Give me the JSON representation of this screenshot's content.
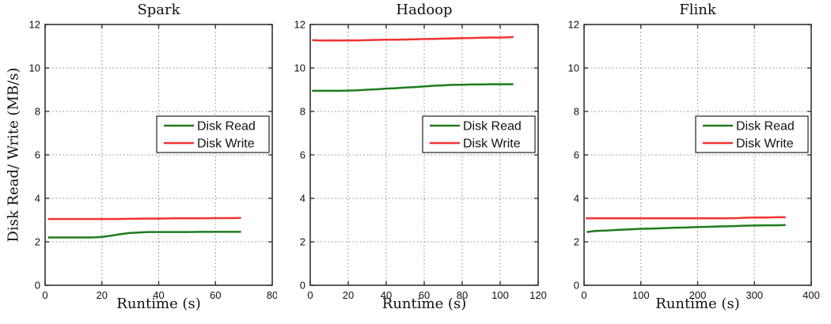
{
  "figure": {
    "shared_ylabel": "Disk Read/ Write (MB/s)",
    "shared_xlabel": "Runtime (s)"
  },
  "colors": {
    "disk_read": "#1e7b1e",
    "disk_write": "#f23333",
    "axis": "#333333",
    "grid": "#888888",
    "text": "#111111",
    "legend_border": "#222222",
    "background": "#ffffff"
  },
  "chart_data": [
    {
      "type": "line",
      "title": "Spark",
      "xlabel": "Runtime (s)",
      "ylabel": "Disk Read/ Write (MB/s)",
      "xlim": [
        0,
        80
      ],
      "xticks": [
        0,
        20,
        40,
        60,
        80
      ],
      "ylim": [
        0,
        12
      ],
      "yticks": [
        0,
        2,
        4,
        6,
        8,
        10,
        12
      ],
      "grid": true,
      "legend": {
        "position": "middle-right",
        "entries": [
          "Disk Read",
          "Disk Write"
        ]
      },
      "series": [
        {
          "name": "Disk Read",
          "color": "#1e7b1e",
          "x": [
            1,
            4,
            8,
            12,
            16,
            18,
            20,
            22,
            24,
            26,
            28,
            30,
            33,
            36,
            40,
            45,
            50,
            55,
            60,
            65,
            69
          ],
          "y": [
            2.2,
            2.2,
            2.2,
            2.2,
            2.2,
            2.21,
            2.23,
            2.26,
            2.3,
            2.34,
            2.38,
            2.41,
            2.43,
            2.45,
            2.45,
            2.45,
            2.45,
            2.46,
            2.46,
            2.46,
            2.46
          ]
        },
        {
          "name": "Disk Write",
          "color": "#f23333",
          "x": [
            1,
            5,
            10,
            15,
            20,
            25,
            30,
            35,
            40,
            45,
            50,
            55,
            60,
            65,
            69
          ],
          "y": [
            3.05,
            3.05,
            3.05,
            3.05,
            3.05,
            3.05,
            3.06,
            3.07,
            3.07,
            3.08,
            3.08,
            3.08,
            3.09,
            3.09,
            3.1
          ]
        }
      ]
    },
    {
      "type": "line",
      "title": "Hadoop",
      "xlabel": "Runtime (s)",
      "ylabel": "",
      "xlim": [
        0,
        120
      ],
      "xticks": [
        0,
        20,
        40,
        60,
        80,
        100,
        120
      ],
      "ylim": [
        0,
        12
      ],
      "yticks": [
        0,
        2,
        4,
        6,
        8,
        10,
        12
      ],
      "grid": true,
      "legend": {
        "position": "middle-right",
        "entries": [
          "Disk Read",
          "Disk Write"
        ]
      },
      "series": [
        {
          "name": "Disk Read",
          "color": "#1e7b1e",
          "x": [
            1,
            5,
            10,
            15,
            20,
            25,
            30,
            35,
            40,
            45,
            50,
            55,
            60,
            65,
            70,
            75,
            80,
            85,
            90,
            95,
            100,
            107
          ],
          "y": [
            8.95,
            8.95,
            8.95,
            8.95,
            8.96,
            8.97,
            9.0,
            9.02,
            9.05,
            9.07,
            9.1,
            9.12,
            9.15,
            9.18,
            9.2,
            9.22,
            9.23,
            9.24,
            9.24,
            9.25,
            9.25,
            9.25
          ]
        },
        {
          "name": "Disk Write",
          "color": "#f23333",
          "x": [
            1,
            5,
            10,
            15,
            20,
            25,
            30,
            35,
            40,
            45,
            50,
            55,
            60,
            65,
            70,
            75,
            80,
            85,
            90,
            95,
            100,
            107
          ],
          "y": [
            11.28,
            11.26,
            11.27,
            11.26,
            11.27,
            11.27,
            11.28,
            11.29,
            11.3,
            11.3,
            11.31,
            11.32,
            11.33,
            11.34,
            11.35,
            11.36,
            11.37,
            11.38,
            11.39,
            11.4,
            11.4,
            11.42
          ]
        }
      ]
    },
    {
      "type": "line",
      "title": "Flink",
      "xlabel": "Runtime (s)",
      "ylabel": "",
      "xlim": [
        0,
        400
      ],
      "xticks": [
        0,
        100,
        200,
        300,
        400
      ],
      "ylim": [
        0,
        12
      ],
      "yticks": [
        0,
        2,
        4,
        6,
        8,
        10,
        12
      ],
      "grid": true,
      "legend": {
        "position": "middle-right",
        "entries": [
          "Disk Read",
          "Disk Write"
        ]
      },
      "series": [
        {
          "name": "Disk Read",
          "color": "#1e7b1e",
          "x": [
            5,
            20,
            40,
            60,
            80,
            100,
            120,
            140,
            160,
            180,
            200,
            220,
            240,
            260,
            280,
            300,
            320,
            340,
            355
          ],
          "y": [
            2.45,
            2.5,
            2.52,
            2.55,
            2.57,
            2.6,
            2.61,
            2.63,
            2.65,
            2.66,
            2.68,
            2.69,
            2.71,
            2.72,
            2.74,
            2.75,
            2.76,
            2.76,
            2.77
          ]
        },
        {
          "name": "Disk Write",
          "color": "#f23333",
          "x": [
            3,
            50,
            100,
            150,
            200,
            250,
            270,
            285,
            300,
            320,
            340,
            355
          ],
          "y": [
            3.08,
            3.08,
            3.08,
            3.08,
            3.08,
            3.08,
            3.09,
            3.11,
            3.12,
            3.12,
            3.13,
            3.13
          ]
        }
      ]
    }
  ]
}
